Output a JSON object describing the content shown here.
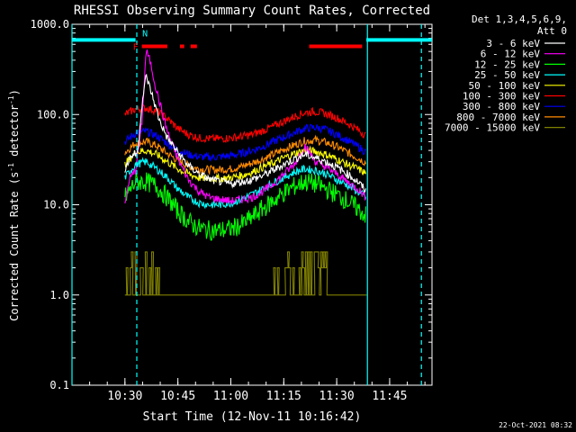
{
  "chart_data": {
    "type": "line",
    "title": "RHESSI Observing Summary Count Rates, Corrected",
    "xlabel": "Start Time (12-Nov-11 10:16:42)",
    "ylabel_main": "Corrected Count Rate (s",
    "ylabel_sup1": "-1",
    "ylabel_mid": " detector",
    "ylabel_sup2": "-1",
    "ylabel_end": ")",
    "yscale": "log",
    "ylim": [
      0.1,
      1000
    ],
    "xlim_minutes": [
      10.25,
      11.95
    ],
    "yticks": [
      {
        "v": 0.1,
        "label": "0.1"
      },
      {
        "v": 1,
        "label": "1.0"
      },
      {
        "v": 10,
        "label": "10.0"
      },
      {
        "v": 100,
        "label": "100.0"
      },
      {
        "v": 1000,
        "label": "1000.0"
      }
    ],
    "xticks": [
      {
        "t": 10.5,
        "label": "10:30"
      },
      {
        "t": 10.75,
        "label": "10:45"
      },
      {
        "t": 11.0,
        "label": "11:00"
      },
      {
        "t": 11.25,
        "label": "11:15"
      },
      {
        "t": 11.5,
        "label": "11:30"
      },
      {
        "t": 11.75,
        "label": "11:45"
      }
    ],
    "legend": {
      "title_line1": "Det 1,3,4,5,6,9,",
      "title_line2": "Att 0",
      "placement": "right"
    },
    "series": [
      {
        "name": "3 - 6 keV",
        "color": "#ffffff",
        "points": [
          [
            10.5,
            25
          ],
          [
            10.53,
            35
          ],
          [
            10.56,
            38
          ],
          [
            10.58,
            130
          ],
          [
            10.6,
            270
          ],
          [
            10.63,
            160
          ],
          [
            10.66,
            90
          ],
          [
            10.7,
            55
          ],
          [
            10.75,
            38
          ],
          [
            10.8,
            27
          ],
          [
            10.85,
            22
          ],
          [
            10.9,
            19
          ],
          [
            10.95,
            18
          ],
          [
            11.0,
            17
          ],
          [
            11.05,
            18
          ],
          [
            11.1,
            19
          ],
          [
            11.15,
            21
          ],
          [
            11.2,
            24
          ],
          [
            11.25,
            28
          ],
          [
            11.3,
            32
          ],
          [
            11.35,
            36
          ],
          [
            11.4,
            33
          ],
          [
            11.45,
            30
          ],
          [
            11.5,
            26
          ],
          [
            11.55,
            22
          ],
          [
            11.6,
            18
          ],
          [
            11.64,
            14
          ]
        ]
      },
      {
        "name": "6 - 12 keV",
        "color": "#ff00ff",
        "points": [
          [
            10.5,
            10
          ],
          [
            10.52,
            19
          ],
          [
            10.55,
            24
          ],
          [
            10.58,
            80
          ],
          [
            10.6,
            520
          ],
          [
            10.62,
            380
          ],
          [
            10.65,
            180
          ],
          [
            10.7,
            65
          ],
          [
            10.75,
            32
          ],
          [
            10.8,
            19
          ],
          [
            10.85,
            14
          ],
          [
            10.9,
            12
          ],
          [
            10.95,
            11.5
          ],
          [
            11.0,
            11
          ],
          [
            11.05,
            11.5
          ],
          [
            11.1,
            12
          ],
          [
            11.15,
            14
          ],
          [
            11.2,
            17
          ],
          [
            11.25,
            22
          ],
          [
            11.3,
            28
          ],
          [
            11.35,
            45
          ],
          [
            11.4,
            30
          ],
          [
            11.45,
            26
          ],
          [
            11.5,
            22
          ],
          [
            11.55,
            18
          ],
          [
            11.6,
            15
          ],
          [
            11.64,
            12
          ]
        ]
      },
      {
        "name": "12 - 25 keV",
        "color": "#00ff00",
        "points": [
          [
            10.5,
            12
          ],
          [
            10.55,
            18
          ],
          [
            10.6,
            18
          ],
          [
            10.65,
            16
          ],
          [
            10.7,
            12
          ],
          [
            10.75,
            8.5
          ],
          [
            10.8,
            6.5
          ],
          [
            10.85,
            5.5
          ],
          [
            10.9,
            5.2
          ],
          [
            10.95,
            5.2
          ],
          [
            11.0,
            5.4
          ],
          [
            11.05,
            6
          ],
          [
            11.1,
            7.2
          ],
          [
            11.15,
            9
          ],
          [
            11.2,
            11
          ],
          [
            11.25,
            13.5
          ],
          [
            11.3,
            16
          ],
          [
            11.35,
            18
          ],
          [
            11.4,
            17
          ],
          [
            11.45,
            15
          ],
          [
            11.5,
            13
          ],
          [
            11.55,
            11
          ],
          [
            11.6,
            9
          ],
          [
            11.64,
            7.5
          ]
        ]
      },
      {
        "name": "25 - 50 keV",
        "color": "#00ffff",
        "points": [
          [
            10.5,
            20
          ],
          [
            10.55,
            28
          ],
          [
            10.6,
            30
          ],
          [
            10.65,
            25
          ],
          [
            10.7,
            20
          ],
          [
            10.75,
            15
          ],
          [
            10.8,
            12
          ],
          [
            10.85,
            10.5
          ],
          [
            10.9,
            10
          ],
          [
            10.95,
            10
          ],
          [
            11.0,
            10.5
          ],
          [
            11.05,
            11.5
          ],
          [
            11.1,
            13
          ],
          [
            11.15,
            15
          ],
          [
            11.2,
            17.5
          ],
          [
            11.25,
            20
          ],
          [
            11.3,
            23
          ],
          [
            11.35,
            25
          ],
          [
            11.4,
            24
          ],
          [
            11.45,
            22
          ],
          [
            11.5,
            19
          ],
          [
            11.55,
            16.5
          ],
          [
            11.6,
            14
          ],
          [
            11.64,
            12
          ]
        ]
      },
      {
        "name": "50 - 100 keV",
        "color": "#ffff00",
        "points": [
          [
            10.5,
            28
          ],
          [
            10.55,
            38
          ],
          [
            10.6,
            40
          ],
          [
            10.65,
            36
          ],
          [
            10.7,
            30
          ],
          [
            10.75,
            25
          ],
          [
            10.8,
            22
          ],
          [
            10.85,
            20
          ],
          [
            10.9,
            19.5
          ],
          [
            10.95,
            19.5
          ],
          [
            11.0,
            20
          ],
          [
            11.05,
            21
          ],
          [
            11.1,
            23
          ],
          [
            11.15,
            26
          ],
          [
            11.2,
            29
          ],
          [
            11.25,
            33
          ],
          [
            11.3,
            37
          ],
          [
            11.35,
            40
          ],
          [
            11.4,
            39
          ],
          [
            11.45,
            36
          ],
          [
            11.5,
            32
          ],
          [
            11.55,
            28
          ],
          [
            11.6,
            25
          ],
          [
            11.64,
            22
          ]
        ]
      },
      {
        "name": "100 - 300 keV",
        "color": "#ff0000",
        "points": [
          [
            10.5,
            100
          ],
          [
            10.55,
            115
          ],
          [
            10.6,
            118
          ],
          [
            10.65,
            110
          ],
          [
            10.7,
            90
          ],
          [
            10.75,
            70
          ],
          [
            10.8,
            60
          ],
          [
            10.85,
            55
          ],
          [
            10.9,
            54
          ],
          [
            10.95,
            54
          ],
          [
            11.0,
            55
          ],
          [
            11.05,
            57
          ],
          [
            11.1,
            60
          ],
          [
            11.15,
            66
          ],
          [
            11.2,
            74
          ],
          [
            11.25,
            84
          ],
          [
            11.3,
            95
          ],
          [
            11.35,
            105
          ],
          [
            11.4,
            108
          ],
          [
            11.45,
            102
          ],
          [
            11.5,
            92
          ],
          [
            11.55,
            80
          ],
          [
            11.6,
            68
          ],
          [
            11.64,
            58
          ]
        ]
      },
      {
        "name": "300 - 800 keV",
        "color": "#0000ff",
        "points": [
          [
            10.5,
            50
          ],
          [
            10.55,
            62
          ],
          [
            10.6,
            65
          ],
          [
            10.65,
            58
          ],
          [
            10.7,
            48
          ],
          [
            10.75,
            40
          ],
          [
            10.8,
            36
          ],
          [
            10.85,
            34
          ],
          [
            10.9,
            33.5
          ],
          [
            10.95,
            34
          ],
          [
            11.0,
            35
          ],
          [
            11.05,
            37
          ],
          [
            11.1,
            40
          ],
          [
            11.15,
            44
          ],
          [
            11.2,
            50
          ],
          [
            11.25,
            56
          ],
          [
            11.3,
            63
          ],
          [
            11.35,
            70
          ],
          [
            11.4,
            72
          ],
          [
            11.45,
            68
          ],
          [
            11.5,
            60
          ],
          [
            11.55,
            52
          ],
          [
            11.6,
            44
          ],
          [
            11.64,
            38
          ]
        ]
      },
      {
        "name": "800 - 7000 keV",
        "color": "#ff8c00",
        "points": [
          [
            10.5,
            38
          ],
          [
            10.55,
            48
          ],
          [
            10.6,
            50
          ],
          [
            10.65,
            45
          ],
          [
            10.7,
            37
          ],
          [
            10.75,
            31
          ],
          [
            10.8,
            27
          ],
          [
            10.85,
            25
          ],
          [
            10.9,
            24.5
          ],
          [
            10.95,
            24.5
          ],
          [
            11.0,
            25
          ],
          [
            11.05,
            26.5
          ],
          [
            11.1,
            29
          ],
          [
            11.15,
            32
          ],
          [
            11.2,
            36
          ],
          [
            11.25,
            41
          ],
          [
            11.3,
            46
          ],
          [
            11.35,
            51
          ],
          [
            11.4,
            52
          ],
          [
            11.45,
            49
          ],
          [
            11.5,
            44
          ],
          [
            11.55,
            38
          ],
          [
            11.6,
            33
          ],
          [
            11.64,
            29
          ]
        ]
      },
      {
        "name": "7000 - 15000 keV",
        "color": "#808000",
        "points": [
          [
            10.5,
            1.5
          ],
          [
            10.55,
            2.5
          ],
          [
            10.6,
            2.0
          ],
          [
            10.65,
            1.5
          ],
          [
            10.7,
            1.0
          ],
          [
            11.0,
            1.0
          ],
          [
            11.2,
            1.5
          ],
          [
            11.3,
            2.5
          ],
          [
            11.35,
            3.0
          ],
          [
            11.4,
            2.5
          ],
          [
            11.45,
            1.5
          ],
          [
            11.5,
            1.0
          ],
          [
            11.64,
            1.0
          ]
        ]
      }
    ],
    "flag_bars": [
      {
        "color": "#00ffff",
        "t0": 10.25,
        "t1": 10.55,
        "y": 670
      },
      {
        "color": "#00ffff",
        "t0": 11.64,
        "t1": 11.95,
        "y": 670
      },
      {
        "color": "#ff0000",
        "t0": 10.58,
        "t1": 10.7,
        "y": 570
      },
      {
        "color": "#ff0000",
        "t0": 10.76,
        "t1": 10.78,
        "y": 570
      },
      {
        "color": "#ff0000",
        "t0": 10.81,
        "t1": 10.84,
        "y": 570
      },
      {
        "color": "#ff0000",
        "t0": 11.37,
        "t1": 11.62,
        "y": 570
      }
    ],
    "flag_labels": [
      {
        "text": "F",
        "color": "#ff0000",
        "t": 10.55,
        "y": 570
      },
      {
        "text": "N",
        "color": "#00ffff",
        "t": 10.595,
        "y": 800
      }
    ],
    "vlines": [
      {
        "t": 10.556,
        "color": "#00ffff",
        "style": "dashed"
      },
      {
        "t": 11.645,
        "color": "#00ffff",
        "style": "solid"
      },
      {
        "t": 11.9,
        "color": "#00ffff",
        "style": "dashed"
      },
      {
        "t": 10.25,
        "color": "#00ffff",
        "style": "solid"
      }
    ],
    "grid": false
  },
  "footer": {
    "date": "22-Oct-2021 08:32"
  }
}
